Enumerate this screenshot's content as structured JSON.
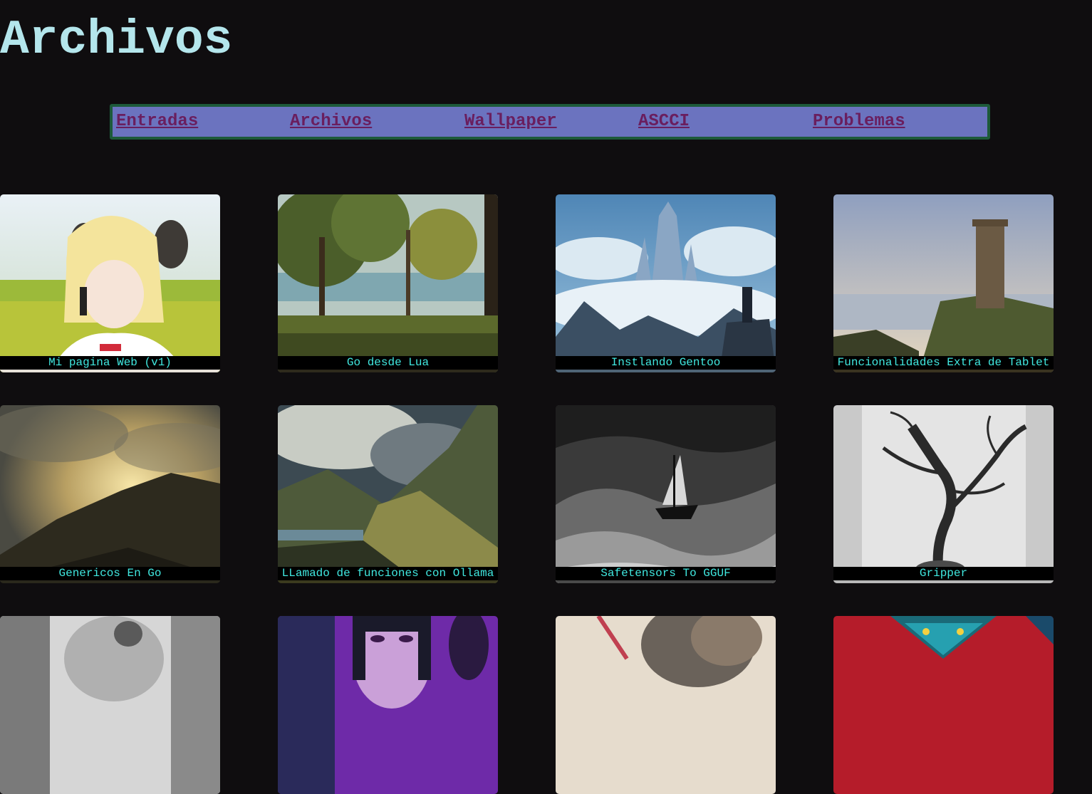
{
  "page": {
    "title": "Archivos"
  },
  "nav": [
    {
      "label": "Entradas"
    },
    {
      "label": "Archivos"
    },
    {
      "label": "Wallpaper"
    },
    {
      "label": "ASCCI"
    },
    {
      "label": "Problemas"
    }
  ],
  "cards": [
    {
      "title": "Mi pagina Web (v1)",
      "image": "anime-girl-phone-image"
    },
    {
      "title": "Go desde Lua",
      "image": "forest-landscape-image"
    },
    {
      "title": "Instlando Gentoo",
      "image": "castle-clouds-image"
    },
    {
      "title": "Funcionalidades Extra de Tablet",
      "image": "ruined-tower-coast-image"
    },
    {
      "title": "Genericos En Go",
      "image": "sunset-hills-image"
    },
    {
      "title": "LLamado de funciones con Ollama",
      "image": "mountain-storm-image"
    },
    {
      "title": "Safetensors To GGUF",
      "image": "ship-storm-engraving-image"
    },
    {
      "title": "Gripper",
      "image": "tree-drawing-image"
    },
    {
      "title": "",
      "image": "engraving-figure-image"
    },
    {
      "title": "",
      "image": "purple-anime-image"
    },
    {
      "title": "",
      "image": "sketch-image"
    },
    {
      "title": "",
      "image": "red-monster-image"
    }
  ],
  "colors": {
    "background": "#0f0d0f",
    "title": "#b4e6ec",
    "nav_background": "#6b73bf",
    "nav_border": "#1d5a3a",
    "nav_link": "#6a1e5e",
    "caption_text": "#40e8e0",
    "caption_background": "#000000"
  }
}
